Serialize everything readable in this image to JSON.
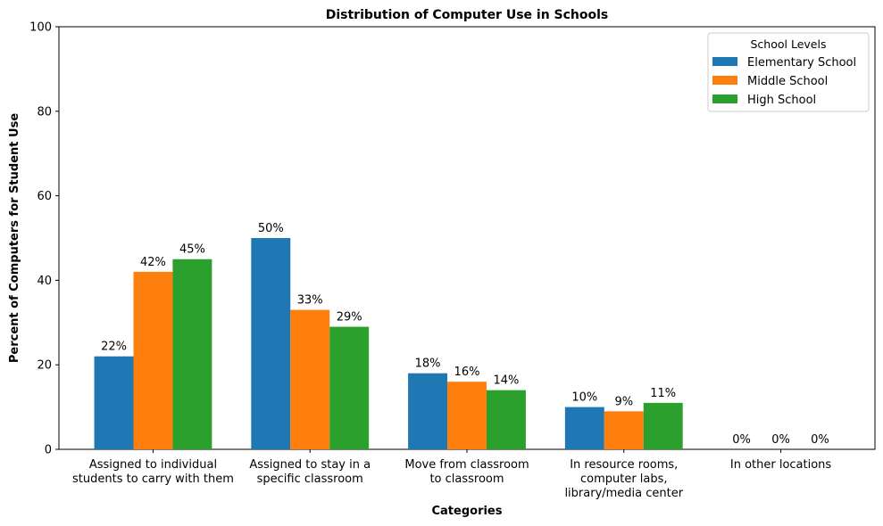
{
  "chart_data": {
    "type": "bar",
    "title": "Distribution of Computer Use in Schools",
    "xlabel": "Categories",
    "ylabel": "Percent of Computers for Student Use",
    "ylim": [
      0,
      100
    ],
    "yticks": [
      0,
      20,
      40,
      60,
      80,
      100
    ],
    "categories": [
      [
        "Assigned to individual",
        "students to carry with them"
      ],
      [
        "Assigned to stay in a",
        "specific classroom"
      ],
      [
        "Move from classroom",
        "to classroom"
      ],
      [
        "In resource rooms,",
        "computer labs,",
        "library/media center"
      ],
      [
        "In other locations"
      ]
    ],
    "series": [
      {
        "name": "Elementary School",
        "color": "#1f77b4",
        "values": [
          22,
          50,
          18,
          10,
          0
        ],
        "labels": [
          "22%",
          "50%",
          "18%",
          "10%",
          "0%"
        ]
      },
      {
        "name": "Middle School",
        "color": "#ff7f0e",
        "values": [
          42,
          33,
          16,
          9,
          0
        ],
        "labels": [
          "42%",
          "33%",
          "16%",
          "9%",
          "0%"
        ]
      },
      {
        "name": "High School",
        "color": "#2ca02c",
        "values": [
          45,
          29,
          14,
          11,
          0
        ],
        "labels": [
          "45%",
          "29%",
          "14%",
          "11%",
          "0%"
        ]
      }
    ],
    "legend": {
      "title": "School Levels",
      "position": "top-right"
    },
    "grid": false
  }
}
